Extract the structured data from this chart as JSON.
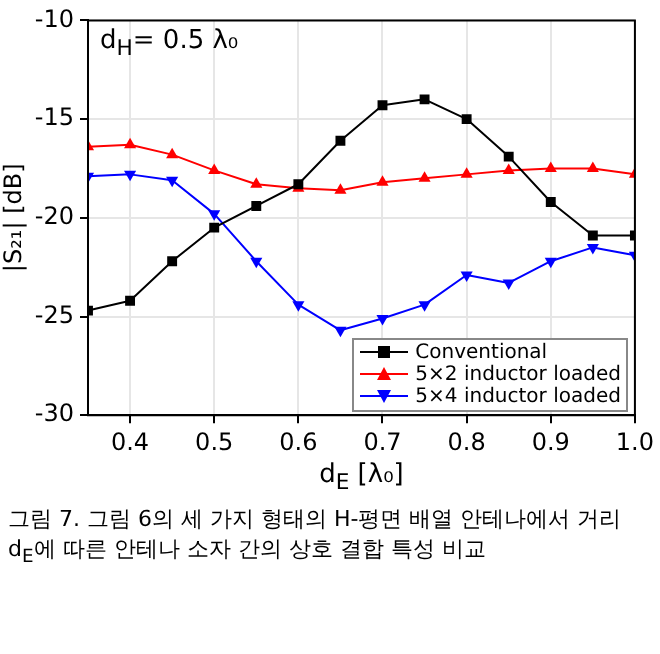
{
  "chart_data": {
    "type": "line",
    "xlabel": "d$_{E}$ [λ₀]",
    "ylabel": "|S₂₁| [dB]",
    "annotations": [
      "d$_{H}$= 0.5 λ₀",
      "그림 7. 그림 6의 세 가지 형태의 H-평면 배열 안테나에서 거리 d$_{E}$에 따른 안테나 소자 간의 상호 결합 특성 비교"
    ],
    "x": [
      0.35,
      0.4,
      0.45,
      0.5,
      0.55,
      0.6,
      0.65,
      0.7,
      0.75,
      0.8,
      0.85,
      0.9,
      0.95,
      1.0
    ],
    "series": [
      {
        "name": "Conventional",
        "color": "#000000",
        "marker": "square",
        "values": [
          -24.7,
          -24.2,
          -22.2,
          -20.5,
          -19.4,
          -18.3,
          -16.1,
          -14.3,
          -14.0,
          -15.0,
          -16.9,
          -19.2,
          -20.9,
          -20.9
        ]
      },
      {
        "name": "5×2 inductor loaded",
        "color": "#ff0000",
        "marker": "triangle",
        "values": [
          -16.4,
          -16.3,
          -16.8,
          -17.6,
          -18.3,
          -18.5,
          -18.6,
          -18.2,
          -18.0,
          -17.8,
          -17.6,
          -17.5,
          -17.5,
          -17.8
        ]
      },
      {
        "name": "5×4 inductor loaded",
        "color": "#0000ff",
        "marker": "triangle-down",
        "values": [
          -17.9,
          -17.8,
          -18.1,
          -19.8,
          -22.2,
          -24.4,
          -25.7,
          -25.1,
          -24.4,
          -22.9,
          -23.3,
          -22.2,
          -21.5,
          -21.9
        ]
      }
    ],
    "xlim": [
      0.35,
      1.0
    ],
    "xticks": [
      {
        "value": 0.4,
        "label": "0.4"
      },
      {
        "value": 0.5,
        "label": "0.5"
      },
      {
        "value": 0.6,
        "label": "0.6"
      },
      {
        "value": 0.7,
        "label": "0.7"
      },
      {
        "value": 0.8,
        "label": "0.8"
      },
      {
        "value": 0.9,
        "label": "0.9"
      },
      {
        "value": 1.0,
        "label": "1.0"
      }
    ],
    "ylim": [
      -30,
      -10
    ],
    "yticks": [
      -30,
      -25,
      -20,
      -15,
      -10
    ],
    "grid": true,
    "legend": "bottom right"
  }
}
